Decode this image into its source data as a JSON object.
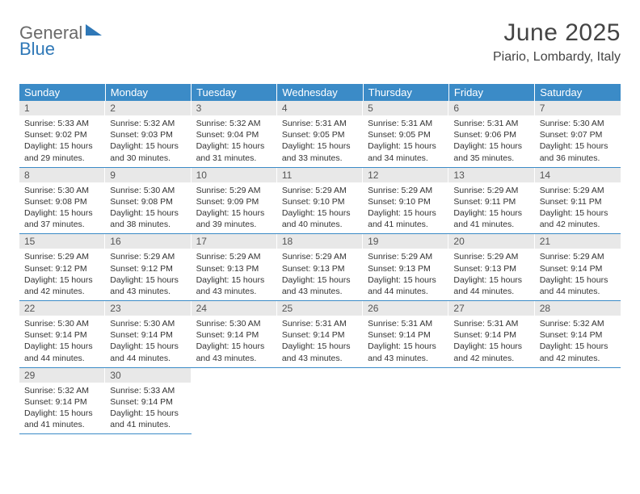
{
  "logo": {
    "text1": "General",
    "text2": "Blue"
  },
  "header": {
    "month": "June 2025",
    "location": "Piario, Lombardy, Italy"
  },
  "colors": {
    "header_bg": "#3b8bc7",
    "header_text": "#ffffff",
    "daynum_bg": "#e8e8e8",
    "border": "#3b8bc7",
    "text": "#333333",
    "page_bg": "#ffffff"
  },
  "weekdays": [
    "Sunday",
    "Monday",
    "Tuesday",
    "Wednesday",
    "Thursday",
    "Friday",
    "Saturday"
  ],
  "first_weekday_index": 0,
  "days": [
    {
      "d": 1,
      "sunrise": "5:33 AM",
      "sunset": "9:02 PM",
      "daylight": "15 hours and 29 minutes."
    },
    {
      "d": 2,
      "sunrise": "5:32 AM",
      "sunset": "9:03 PM",
      "daylight": "15 hours and 30 minutes."
    },
    {
      "d": 3,
      "sunrise": "5:32 AM",
      "sunset": "9:04 PM",
      "daylight": "15 hours and 31 minutes."
    },
    {
      "d": 4,
      "sunrise": "5:31 AM",
      "sunset": "9:05 PM",
      "daylight": "15 hours and 33 minutes."
    },
    {
      "d": 5,
      "sunrise": "5:31 AM",
      "sunset": "9:05 PM",
      "daylight": "15 hours and 34 minutes."
    },
    {
      "d": 6,
      "sunrise": "5:31 AM",
      "sunset": "9:06 PM",
      "daylight": "15 hours and 35 minutes."
    },
    {
      "d": 7,
      "sunrise": "5:30 AM",
      "sunset": "9:07 PM",
      "daylight": "15 hours and 36 minutes."
    },
    {
      "d": 8,
      "sunrise": "5:30 AM",
      "sunset": "9:08 PM",
      "daylight": "15 hours and 37 minutes."
    },
    {
      "d": 9,
      "sunrise": "5:30 AM",
      "sunset": "9:08 PM",
      "daylight": "15 hours and 38 minutes."
    },
    {
      "d": 10,
      "sunrise": "5:29 AM",
      "sunset": "9:09 PM",
      "daylight": "15 hours and 39 minutes."
    },
    {
      "d": 11,
      "sunrise": "5:29 AM",
      "sunset": "9:10 PM",
      "daylight": "15 hours and 40 minutes."
    },
    {
      "d": 12,
      "sunrise": "5:29 AM",
      "sunset": "9:10 PM",
      "daylight": "15 hours and 41 minutes."
    },
    {
      "d": 13,
      "sunrise": "5:29 AM",
      "sunset": "9:11 PM",
      "daylight": "15 hours and 41 minutes."
    },
    {
      "d": 14,
      "sunrise": "5:29 AM",
      "sunset": "9:11 PM",
      "daylight": "15 hours and 42 minutes."
    },
    {
      "d": 15,
      "sunrise": "5:29 AM",
      "sunset": "9:12 PM",
      "daylight": "15 hours and 42 minutes."
    },
    {
      "d": 16,
      "sunrise": "5:29 AM",
      "sunset": "9:12 PM",
      "daylight": "15 hours and 43 minutes."
    },
    {
      "d": 17,
      "sunrise": "5:29 AM",
      "sunset": "9:13 PM",
      "daylight": "15 hours and 43 minutes."
    },
    {
      "d": 18,
      "sunrise": "5:29 AM",
      "sunset": "9:13 PM",
      "daylight": "15 hours and 43 minutes."
    },
    {
      "d": 19,
      "sunrise": "5:29 AM",
      "sunset": "9:13 PM",
      "daylight": "15 hours and 44 minutes."
    },
    {
      "d": 20,
      "sunrise": "5:29 AM",
      "sunset": "9:13 PM",
      "daylight": "15 hours and 44 minutes."
    },
    {
      "d": 21,
      "sunrise": "5:29 AM",
      "sunset": "9:14 PM",
      "daylight": "15 hours and 44 minutes."
    },
    {
      "d": 22,
      "sunrise": "5:30 AM",
      "sunset": "9:14 PM",
      "daylight": "15 hours and 44 minutes."
    },
    {
      "d": 23,
      "sunrise": "5:30 AM",
      "sunset": "9:14 PM",
      "daylight": "15 hours and 44 minutes."
    },
    {
      "d": 24,
      "sunrise": "5:30 AM",
      "sunset": "9:14 PM",
      "daylight": "15 hours and 43 minutes."
    },
    {
      "d": 25,
      "sunrise": "5:31 AM",
      "sunset": "9:14 PM",
      "daylight": "15 hours and 43 minutes."
    },
    {
      "d": 26,
      "sunrise": "5:31 AM",
      "sunset": "9:14 PM",
      "daylight": "15 hours and 43 minutes."
    },
    {
      "d": 27,
      "sunrise": "5:31 AM",
      "sunset": "9:14 PM",
      "daylight": "15 hours and 42 minutes."
    },
    {
      "d": 28,
      "sunrise": "5:32 AM",
      "sunset": "9:14 PM",
      "daylight": "15 hours and 42 minutes."
    },
    {
      "d": 29,
      "sunrise": "5:32 AM",
      "sunset": "9:14 PM",
      "daylight": "15 hours and 41 minutes."
    },
    {
      "d": 30,
      "sunrise": "5:33 AM",
      "sunset": "9:14 PM",
      "daylight": "15 hours and 41 minutes."
    }
  ],
  "labels": {
    "sunrise": "Sunrise:",
    "sunset": "Sunset:",
    "daylight": "Daylight:"
  }
}
